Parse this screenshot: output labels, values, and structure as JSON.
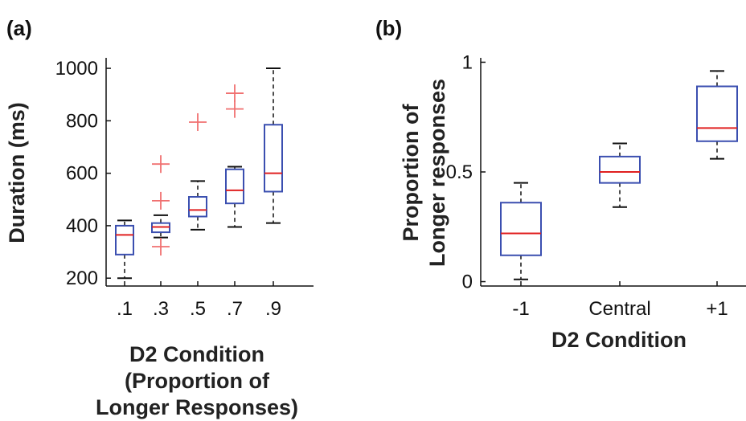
{
  "panels": [
    {
      "label": "(a)"
    },
    {
      "label": "(b)"
    }
  ],
  "chart_data": [
    {
      "type": "box",
      "xlabel_lines": [
        "D2 Condition",
        "(Proportion of",
        "Longer Responses)"
      ],
      "ylabel_lines": [
        "Duration (ms)"
      ],
      "ylim": [
        170,
        1040
      ],
      "yticks": [
        {
          "value": 200,
          "label": "200"
        },
        {
          "value": 400,
          "label": "400"
        },
        {
          "value": 600,
          "label": "600"
        },
        {
          "value": 800,
          "label": "800"
        },
        {
          "value": 1000,
          "label": "1000"
        }
      ],
      "categories": [
        ".1",
        ".3",
        ".5",
        ".7",
        ".9"
      ],
      "boxes": [
        {
          "category": ".1",
          "whisker_low": 200,
          "q1": 290,
          "median": 365,
          "q3": 400,
          "whisker_high": 420,
          "outliers": []
        },
        {
          "category": ".3",
          "whisker_low": 355,
          "q1": 375,
          "median": 395,
          "q3": 410,
          "whisker_high": 440,
          "outliers": [
            635,
            495,
            320
          ]
        },
        {
          "category": ".5",
          "whisker_low": 385,
          "q1": 435,
          "median": 460,
          "q3": 510,
          "whisker_high": 570,
          "outliers": [
            795
          ]
        },
        {
          "category": ".7",
          "whisker_low": 395,
          "q1": 485,
          "median": 535,
          "q3": 615,
          "whisker_high": 625,
          "outliers": [
            905,
            845
          ]
        },
        {
          "category": ".9",
          "whisker_low": 410,
          "q1": 530,
          "median": 600,
          "q3": 785,
          "whisker_high": 1000,
          "outliers": []
        }
      ]
    },
    {
      "type": "box",
      "xlabel_lines": [
        "D2 Condition"
      ],
      "ylabel_lines": [
        "Proportion of",
        "Longer responses"
      ],
      "ylim": [
        -0.02,
        1.02
      ],
      "yticks": [
        {
          "value": 0,
          "label": "0"
        },
        {
          "value": 0.5,
          "label": "0.5"
        },
        {
          "value": 1,
          "label": "1"
        }
      ],
      "categories": [
        "-1",
        "Central",
        "+1"
      ],
      "boxes": [
        {
          "category": "-1",
          "whisker_low": 0.01,
          "q1": 0.12,
          "median": 0.22,
          "q3": 0.36,
          "whisker_high": 0.45,
          "outliers": []
        },
        {
          "category": "Central",
          "whisker_low": 0.34,
          "q1": 0.45,
          "median": 0.5,
          "q3": 0.57,
          "whisker_high": 0.63,
          "outliers": []
        },
        {
          "category": "+1",
          "whisker_low": 0.56,
          "q1": 0.64,
          "median": 0.7,
          "q3": 0.89,
          "whisker_high": 0.96,
          "outliers": []
        }
      ]
    }
  ],
  "colors": {
    "box": "#3b4fb0",
    "median": "#e02020",
    "outlier": "#f07070",
    "whisker": "#111111",
    "axis": "#111111"
  }
}
